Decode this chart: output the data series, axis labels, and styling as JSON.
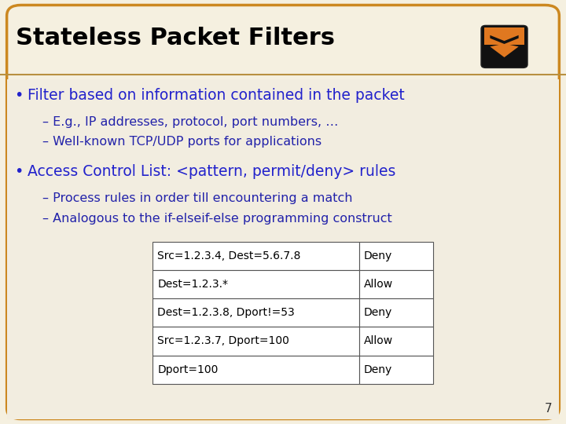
{
  "title": "Stateless Packet Filters",
  "title_color": "#000000",
  "slide_bg": "#f5f0e0",
  "content_bg": "#f0ece0",
  "border_color": "#cc8820",
  "sep_line_color": "#b89040",
  "bullet1_text": "Filter based on information contained in the packet",
  "bullet_color": "#2222cc",
  "sub1a": "– E.g., IP addresses, protocol, port numbers, …",
  "sub1b": "– Well-known TCP/UDP ports for applications",
  "sub_color": "#2222aa",
  "bullet2_text": "Access Control List: <pattern, permit/deny> rules",
  "sub2a": "– Process rules in order till encountering a match",
  "sub2b": "– Analogous to the if-elseif-else programming construct",
  "table_rows": [
    [
      "Src=1.2.3.4, Dest=5.6.7.8",
      "Deny"
    ],
    [
      "Dest=1.2.3.*",
      "Allow"
    ],
    [
      "Dest=1.2.3.8, Dport!=53",
      "Deny"
    ],
    [
      "Src=1.2.3.7, Dport=100",
      "Allow"
    ],
    [
      "Dport=100",
      "Deny"
    ]
  ],
  "table_text_color": "#000000",
  "page_number": "7",
  "shield_orange": "#e07820",
  "shield_black": "#111111",
  "shield_white": "#ffffff"
}
